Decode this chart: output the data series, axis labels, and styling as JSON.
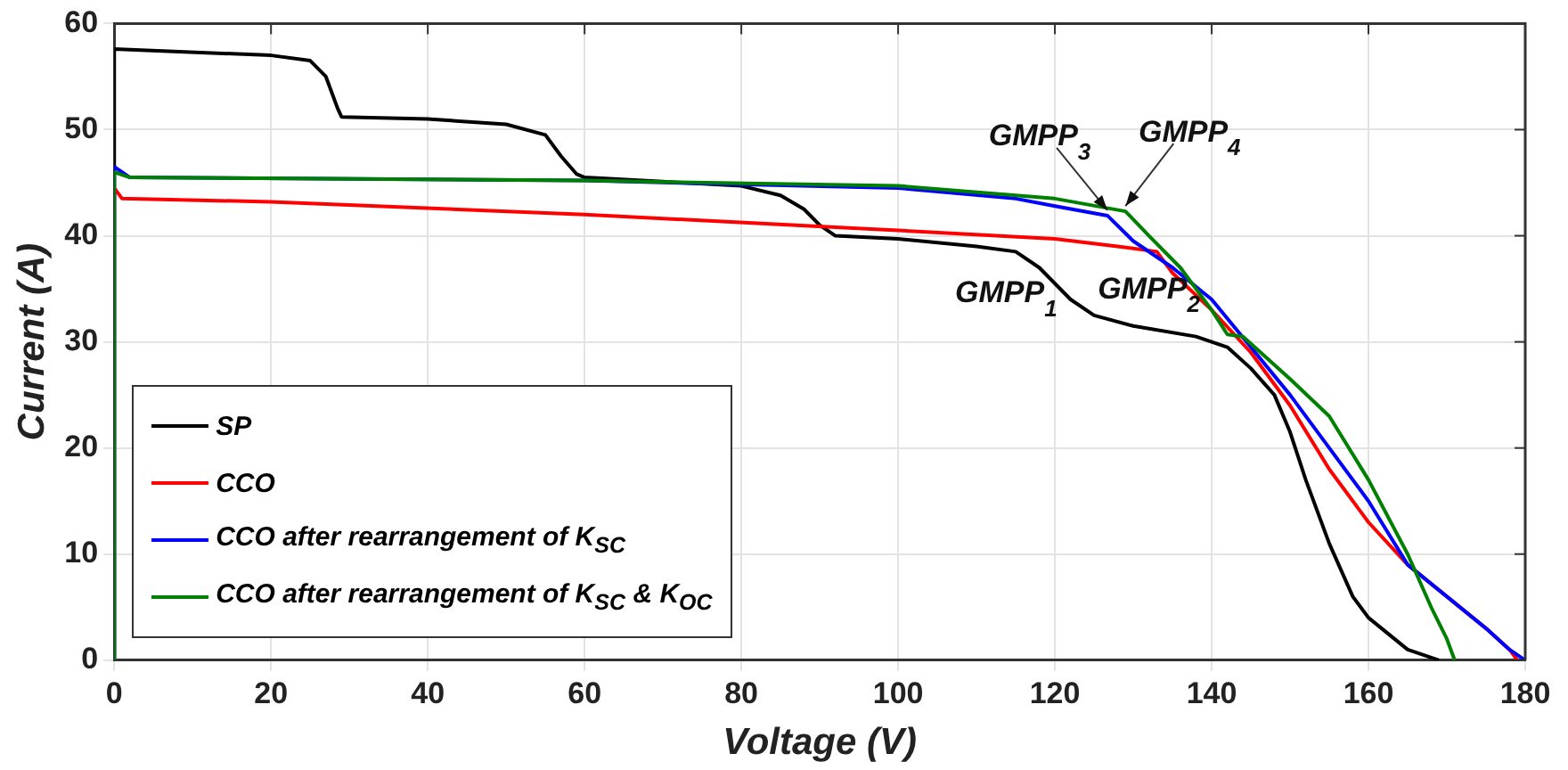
{
  "chart_data": {
    "type": "line",
    "xlabel": "Voltage (V)",
    "ylabel": "Current (A)",
    "xlim": [
      0,
      180
    ],
    "ylim": [
      0,
      60
    ],
    "xticks": [
      0,
      20,
      40,
      60,
      80,
      100,
      120,
      140,
      160,
      180
    ],
    "yticks": [
      0,
      10,
      20,
      30,
      40,
      50,
      60
    ],
    "grid": true,
    "legend": "bottom left",
    "marker": "none",
    "line_style": "solid",
    "series": [
      {
        "name": "SP",
        "color": "#000000",
        "x": [
          0,
          0,
          20,
          25,
          27,
          28.5,
          29,
          40,
          50,
          55,
          57,
          59,
          60,
          70,
          80,
          85,
          88,
          90,
          92,
          100,
          110,
          115,
          118,
          122,
          125,
          130,
          138,
          142,
          145,
          148,
          150,
          152,
          155,
          158,
          160,
          165,
          169
        ],
        "values": [
          0,
          57.6,
          57,
          56.5,
          55,
          52,
          51.2,
          51,
          50.5,
          49.5,
          47.5,
          45.8,
          45.5,
          45.1,
          44.7,
          43.8,
          42.5,
          41,
          40,
          39.7,
          39,
          38.5,
          37,
          34,
          32.5,
          31.5,
          30.5,
          29.5,
          27.5,
          25,
          21.5,
          17,
          11,
          6,
          4,
          1,
          0
        ]
      },
      {
        "name": "CCO",
        "color": "#ff0000",
        "x": [
          0,
          0,
          1,
          20,
          60,
          100,
          120,
          128,
          133,
          135,
          140,
          145,
          150,
          155,
          160,
          165,
          170,
          175,
          178,
          179
        ],
        "values": [
          0,
          44.5,
          43.5,
          43.2,
          42,
          40.5,
          39.7,
          39,
          38.5,
          36.5,
          33,
          29,
          24,
          18,
          13,
          9,
          6,
          3,
          1,
          0
        ]
      },
      {
        "name": "CCO after rearrangement of K$_{SC}$",
        "color": "#0000ff",
        "x": [
          0,
          0,
          2,
          60,
          100,
          115,
          120,
          126.7,
          130,
          135,
          140,
          145,
          150,
          155,
          160,
          165,
          170,
          175,
          178,
          180
        ],
        "values": [
          0,
          46.5,
          45.5,
          45.2,
          44.5,
          43.5,
          42.8,
          41.9,
          39.5,
          37,
          34,
          29.5,
          25,
          20,
          15,
          9,
          6,
          3,
          1,
          0
        ]
      },
      {
        "name": "CCO after rearrangement of K$_{SC}$ & K$_{OC}$",
        "color": "#008000",
        "x": [
          0,
          0,
          2,
          60,
          100,
          120,
          129,
          132,
          136,
          140,
          142,
          144,
          147,
          150,
          155,
          160,
          165,
          168,
          170,
          171
        ],
        "values": [
          0,
          46,
          45.5,
          45.2,
          44.7,
          43.5,
          42.3,
          40,
          37,
          33,
          30.7,
          30.5,
          28.5,
          26.5,
          23,
          17,
          10,
          5,
          2,
          0
        ]
      }
    ],
    "annotations": [
      {
        "text": "GMPP$_{1}$",
        "x": 115.6,
        "y": 38.2
      },
      {
        "text": "GMPP$_{2}$",
        "x": 132.9,
        "y": 38.6
      },
      {
        "text": "GMPP$_{3}$",
        "x": 126.7,
        "y": 41.9
      },
      {
        "text": "GMPP$_{4}$",
        "x": 129,
        "y": 42.3
      }
    ]
  }
}
